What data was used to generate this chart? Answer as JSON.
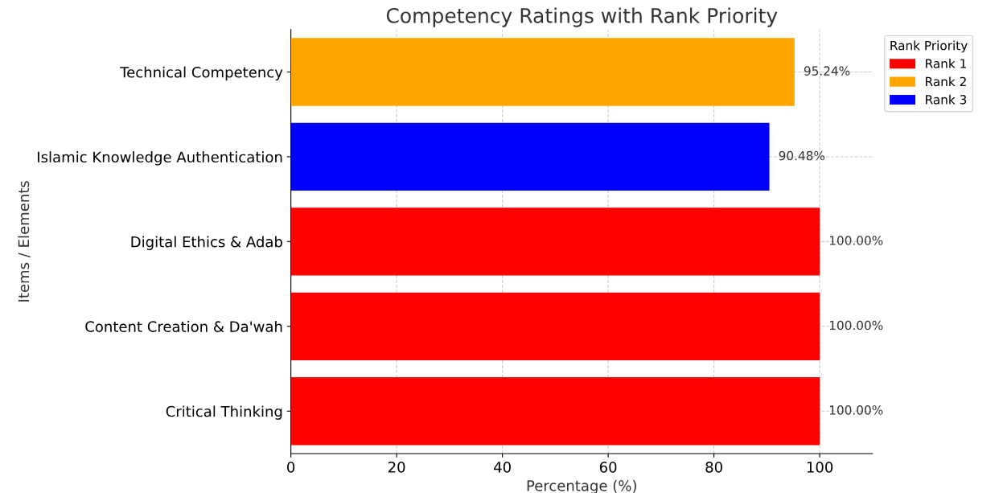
{
  "chart_data": {
    "type": "bar",
    "orientation": "horizontal",
    "title": "Competency Ratings with Rank Priority",
    "xlabel": "Percentage (%)",
    "ylabel": "Items / Elements",
    "categories": [
      "Technical Competency",
      "Islamic Knowledge Authentication",
      "Digital Ethics & Adab",
      "Content Creation & Da'wah",
      "Critical Thinking"
    ],
    "series": [
      {
        "name": "Rank 1",
        "color": "#ff0000",
        "values": [
          null,
          null,
          100,
          100,
          100
        ],
        "value_labels": [
          null,
          null,
          "100.00%",
          "100.00%",
          "100.00%"
        ]
      },
      {
        "name": "Rank 2",
        "color": "#ffa500",
        "values": [
          95.24,
          null,
          null,
          null,
          null
        ],
        "value_labels": [
          "95.24%",
          null,
          null,
          null,
          null
        ]
      },
      {
        "name": "Rank 3",
        "color": "#0000ff",
        "values": [
          null,
          90.48,
          null,
          null,
          null
        ],
        "value_labels": [
          null,
          "90.48%",
          null,
          null,
          null
        ]
      }
    ],
    "legend_title": "Rank Priority",
    "legend": "top right",
    "xlim": [
      0,
      110
    ],
    "xticks": [
      0,
      20,
      40,
      60,
      80,
      100
    ],
    "grid": true
  }
}
